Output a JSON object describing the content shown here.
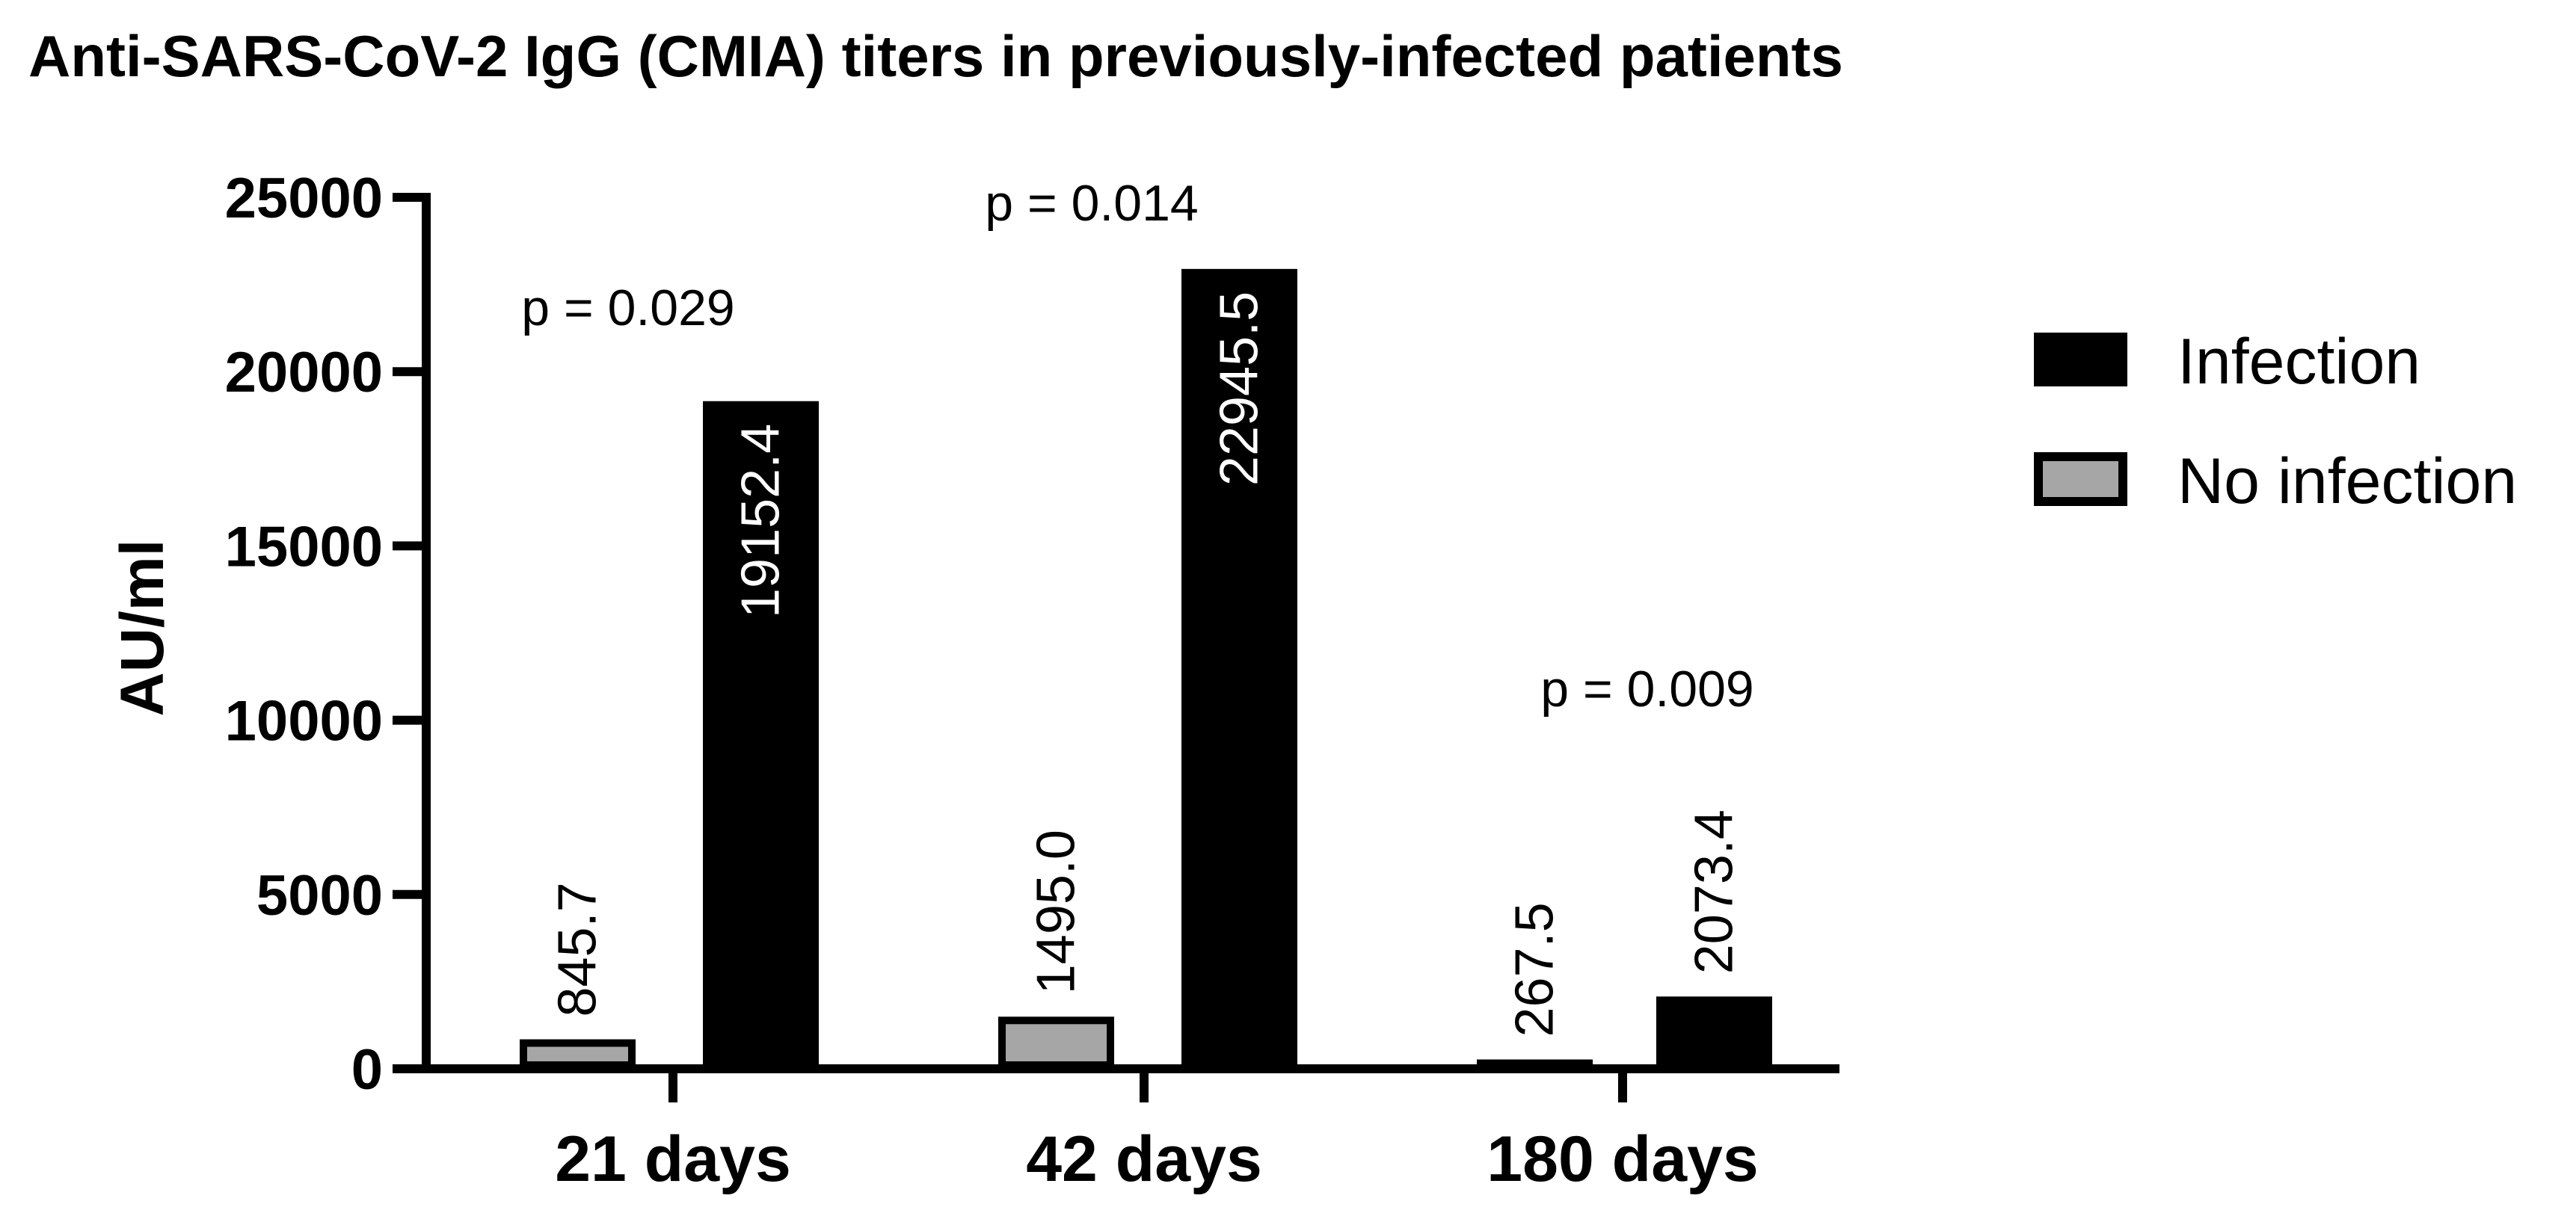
{
  "chart_data": {
    "type": "bar",
    "title": "Anti-SARS-CoV-2 IgG (CMIA) titers in previously-infected patients",
    "xlabel": "",
    "ylabel": "AU/ml",
    "ylim": [
      0,
      25000
    ],
    "yticks": [
      0,
      5000,
      10000,
      15000,
      20000,
      25000
    ],
    "categories": [
      "21 days",
      "42 days",
      "180 days"
    ],
    "series": [
      {
        "name": "No infection",
        "values": [
          845.7,
          1495.0,
          267.5
        ],
        "labels": [
          "845.7",
          "1495.0",
          "267.5"
        ],
        "color": "#a6a6a6"
      },
      {
        "name": "Infection",
        "values": [
          19152.4,
          22945.5,
          2073.4
        ],
        "labels": [
          "19152.4",
          "22945.5",
          "2073.4"
        ],
        "color": "#000000"
      }
    ],
    "p_values": [
      "p = 0.029",
      "p = 0.014",
      "p = 0.009"
    ],
    "legend": {
      "position": "right",
      "entries": [
        "Infection",
        "No infection"
      ]
    }
  }
}
